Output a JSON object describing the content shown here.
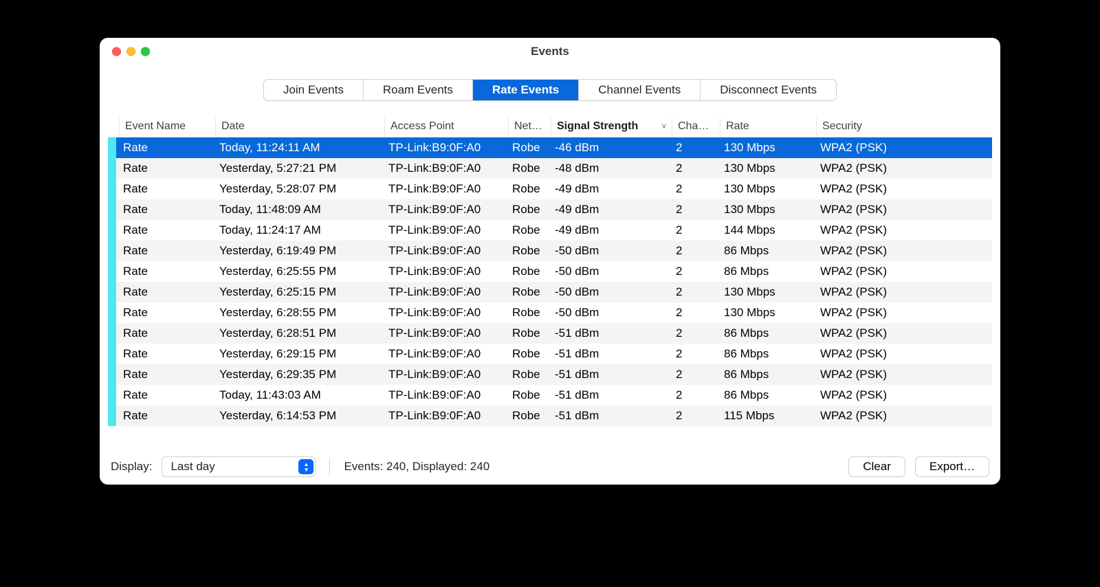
{
  "window": {
    "title": "Events"
  },
  "tabs": {
    "items": [
      "Join Events",
      "Roam Events",
      "Rate Events",
      "Channel Events",
      "Disconnect Events"
    ],
    "activeIndex": 2
  },
  "columns": [
    {
      "key": "name",
      "label": "Event Name",
      "widthClass": "c-name",
      "sorted": false
    },
    {
      "key": "date",
      "label": "Date",
      "widthClass": "c-date",
      "sorted": false
    },
    {
      "key": "ap",
      "label": "Access Point",
      "widthClass": "c-ap",
      "sorted": false
    },
    {
      "key": "net",
      "label": "Net…",
      "widthClass": "c-net",
      "sorted": false
    },
    {
      "key": "sig",
      "label": "Signal Strength",
      "widthClass": "c-sig",
      "sorted": true,
      "sortDir": "desc"
    },
    {
      "key": "chan",
      "label": "Cha…",
      "widthClass": "c-chan",
      "sorted": false
    },
    {
      "key": "rate",
      "label": "Rate",
      "widthClass": "c-rate",
      "sorted": false
    },
    {
      "key": "sec",
      "label": "Security",
      "widthClass": "c-sec",
      "sorted": false
    }
  ],
  "rowColorBar": "#4de8f2",
  "selectedRowIndex": 0,
  "rows": [
    {
      "name": "Rate",
      "date": "Today, 11:24:11 AM",
      "ap": "TP-Link:B9:0F:A0",
      "net": "Robe",
      "sig": "-46 dBm",
      "chan": "2",
      "rate": "130 Mbps",
      "sec": "WPA2 (PSK)"
    },
    {
      "name": "Rate",
      "date": "Yesterday, 5:27:21 PM",
      "ap": "TP-Link:B9:0F:A0",
      "net": "Robe",
      "sig": "-48 dBm",
      "chan": "2",
      "rate": "130 Mbps",
      "sec": "WPA2 (PSK)"
    },
    {
      "name": "Rate",
      "date": "Yesterday, 5:28:07 PM",
      "ap": "TP-Link:B9:0F:A0",
      "net": "Robe",
      "sig": "-49 dBm",
      "chan": "2",
      "rate": "130 Mbps",
      "sec": "WPA2 (PSK)"
    },
    {
      "name": "Rate",
      "date": "Today, 11:48:09 AM",
      "ap": "TP-Link:B9:0F:A0",
      "net": "Robe",
      "sig": "-49 dBm",
      "chan": "2",
      "rate": "130 Mbps",
      "sec": "WPA2 (PSK)"
    },
    {
      "name": "Rate",
      "date": "Today, 11:24:17 AM",
      "ap": "TP-Link:B9:0F:A0",
      "net": "Robe",
      "sig": "-49 dBm",
      "chan": "2",
      "rate": "144 Mbps",
      "sec": "WPA2 (PSK)"
    },
    {
      "name": "Rate",
      "date": "Yesterday, 6:19:49 PM",
      "ap": "TP-Link:B9:0F:A0",
      "net": "Robe",
      "sig": "-50 dBm",
      "chan": "2",
      "rate": "86 Mbps",
      "sec": "WPA2 (PSK)"
    },
    {
      "name": "Rate",
      "date": "Yesterday, 6:25:55 PM",
      "ap": "TP-Link:B9:0F:A0",
      "net": "Robe",
      "sig": "-50 dBm",
      "chan": "2",
      "rate": "86 Mbps",
      "sec": "WPA2 (PSK)"
    },
    {
      "name": "Rate",
      "date": "Yesterday, 6:25:15 PM",
      "ap": "TP-Link:B9:0F:A0",
      "net": "Robe",
      "sig": "-50 dBm",
      "chan": "2",
      "rate": "130 Mbps",
      "sec": "WPA2 (PSK)"
    },
    {
      "name": "Rate",
      "date": "Yesterday, 6:28:55 PM",
      "ap": "TP-Link:B9:0F:A0",
      "net": "Robe",
      "sig": "-50 dBm",
      "chan": "2",
      "rate": "130 Mbps",
      "sec": "WPA2 (PSK)"
    },
    {
      "name": "Rate",
      "date": "Yesterday, 6:28:51 PM",
      "ap": "TP-Link:B9:0F:A0",
      "net": "Robe",
      "sig": "-51 dBm",
      "chan": "2",
      "rate": "86 Mbps",
      "sec": "WPA2 (PSK)"
    },
    {
      "name": "Rate",
      "date": "Yesterday, 6:29:15 PM",
      "ap": "TP-Link:B9:0F:A0",
      "net": "Robe",
      "sig": "-51 dBm",
      "chan": "2",
      "rate": "86 Mbps",
      "sec": "WPA2 (PSK)"
    },
    {
      "name": "Rate",
      "date": "Yesterday, 6:29:35 PM",
      "ap": "TP-Link:B9:0F:A0",
      "net": "Robe",
      "sig": "-51 dBm",
      "chan": "2",
      "rate": "86 Mbps",
      "sec": "WPA2 (PSK)"
    },
    {
      "name": "Rate",
      "date": "Today, 11:43:03 AM",
      "ap": "TP-Link:B9:0F:A0",
      "net": "Robe",
      "sig": "-51 dBm",
      "chan": "2",
      "rate": "86 Mbps",
      "sec": "WPA2 (PSK)"
    },
    {
      "name": "Rate",
      "date": "Yesterday, 6:14:53 PM",
      "ap": "TP-Link:B9:0F:A0",
      "net": "Robe",
      "sig": "-51 dBm",
      "chan": "2",
      "rate": "115 Mbps",
      "sec": "WPA2 (PSK)"
    }
  ],
  "footer": {
    "displayLabel": "Display:",
    "selectValue": "Last day",
    "statusText": "Events: 240, Displayed: 240",
    "clearLabel": "Clear",
    "exportLabel": "Export…"
  },
  "colors": {
    "selection": "#0968da",
    "accent": "#0a66ff",
    "stripeOdd": "#f4f4f4",
    "stripeEven": "#ffffff"
  }
}
